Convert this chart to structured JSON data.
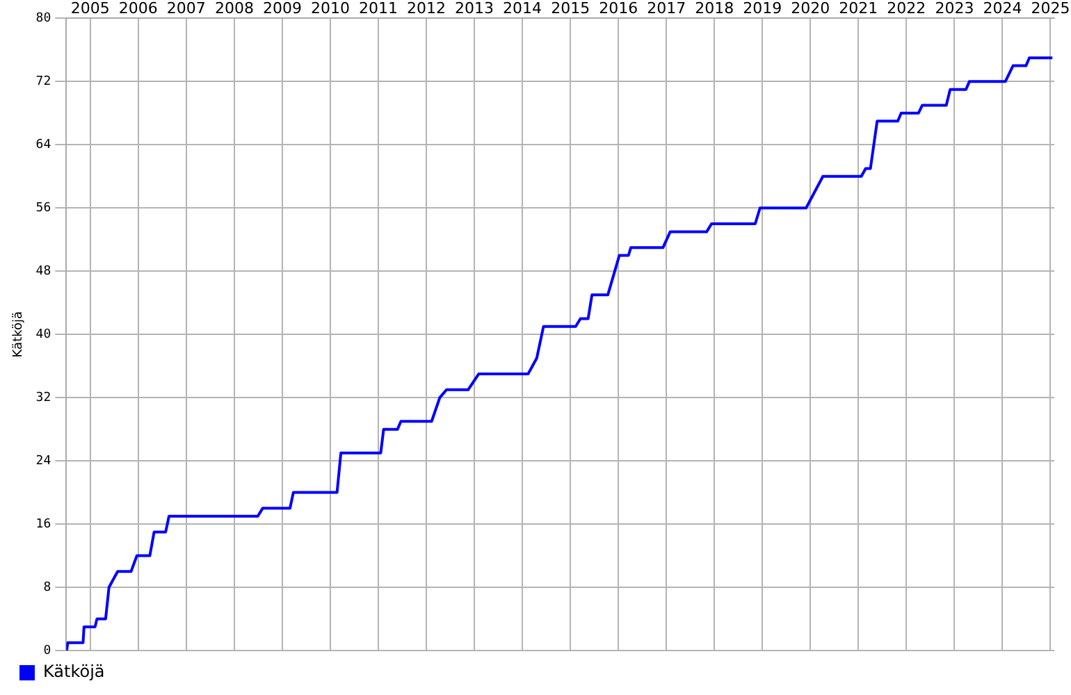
{
  "chart_data": {
    "type": "line",
    "ylabel": "Kätköjä",
    "xlim": [
      2004.5,
      2025.08
    ],
    "xticks": [
      2005,
      2006,
      2007,
      2008,
      2009,
      2010,
      2011,
      2012,
      2013,
      2014,
      2015,
      2016,
      2017,
      2018,
      2019,
      2020,
      2021,
      2022,
      2023,
      2024,
      2025
    ],
    "ylim": [
      0,
      80
    ],
    "yticks": [
      0,
      8,
      16,
      24,
      32,
      40,
      48,
      56,
      64,
      72,
      80
    ],
    "grid": true,
    "legend": "bottom left",
    "marker": "none",
    "line_style": "solid",
    "x": [
      2004.51,
      2004.53,
      2004.85,
      2004.87,
      2005.1,
      2005.14,
      2005.32,
      2005.39,
      2005.57,
      2005.85,
      2005.97,
      2006.24,
      2006.33,
      2006.57,
      2006.64,
      2008.49,
      2008.59,
      2009.16,
      2009.23,
      2010.14,
      2010.22,
      2011.05,
      2011.11,
      2011.4,
      2011.47,
      2012.11,
      2012.28,
      2012.42,
      2012.87,
      2013.09,
      2014.12,
      2014.3,
      2014.44,
      2015.11,
      2015.21,
      2015.37,
      2015.45,
      2015.78,
      2016.02,
      2016.21,
      2016.26,
      2016.93,
      2017.08,
      2017.84,
      2017.94,
      2018.85,
      2018.95,
      2019.91,
      2020.26,
      2021.06,
      2021.15,
      2021.25,
      2021.39,
      2021.82,
      2021.89,
      2022.25,
      2022.33,
      2022.83,
      2022.91,
      2023.24,
      2023.31,
      2024.06,
      2024.22,
      2024.49,
      2024.56,
      2025.04
    ],
    "series": [
      {
        "name": "Kätköjä",
        "color": "#0000ff",
        "values": [
          0,
          1,
          1,
          3,
          3,
          4,
          4,
          8,
          10,
          10,
          12,
          12,
          15,
          15,
          17,
          17,
          18,
          18,
          20,
          20,
          25,
          25,
          28,
          28,
          29,
          29,
          32,
          33,
          33,
          35,
          35,
          37,
          41,
          41,
          42,
          42,
          45,
          45,
          50,
          50,
          51,
          51,
          53,
          53,
          54,
          54,
          56,
          56,
          60,
          60,
          61,
          61,
          67,
          67,
          68,
          68,
          69,
          69,
          71,
          71,
          72,
          72,
          74,
          74,
          75,
          75
        ]
      }
    ]
  }
}
